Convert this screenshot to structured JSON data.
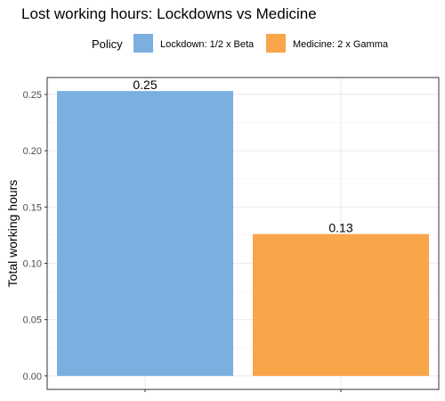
{
  "chart_data": {
    "type": "bar",
    "title": "Lost working hours: Lockdowns vs Medicine",
    "xlabel": "",
    "ylabel": "Total working hours",
    "legend_title": "Policy",
    "legend_position": "top",
    "grid": true,
    "ylim": [
      -0.012,
      0.265
    ],
    "yticks": [
      0.0,
      0.05,
      0.1,
      0.15,
      0.2,
      0.25
    ],
    "ytick_labels": [
      "0.00",
      "0.05",
      "0.10",
      "0.15",
      "0.20",
      "0.25"
    ],
    "categories": [
      "Lockdown: 1/2 x Beta",
      "Medicine: 2 x Gamma"
    ],
    "values": [
      0.253,
      0.126
    ],
    "data_labels": [
      "0.25",
      "0.13"
    ],
    "colors": [
      "#7aafe0",
      "#f9a54a"
    ]
  }
}
